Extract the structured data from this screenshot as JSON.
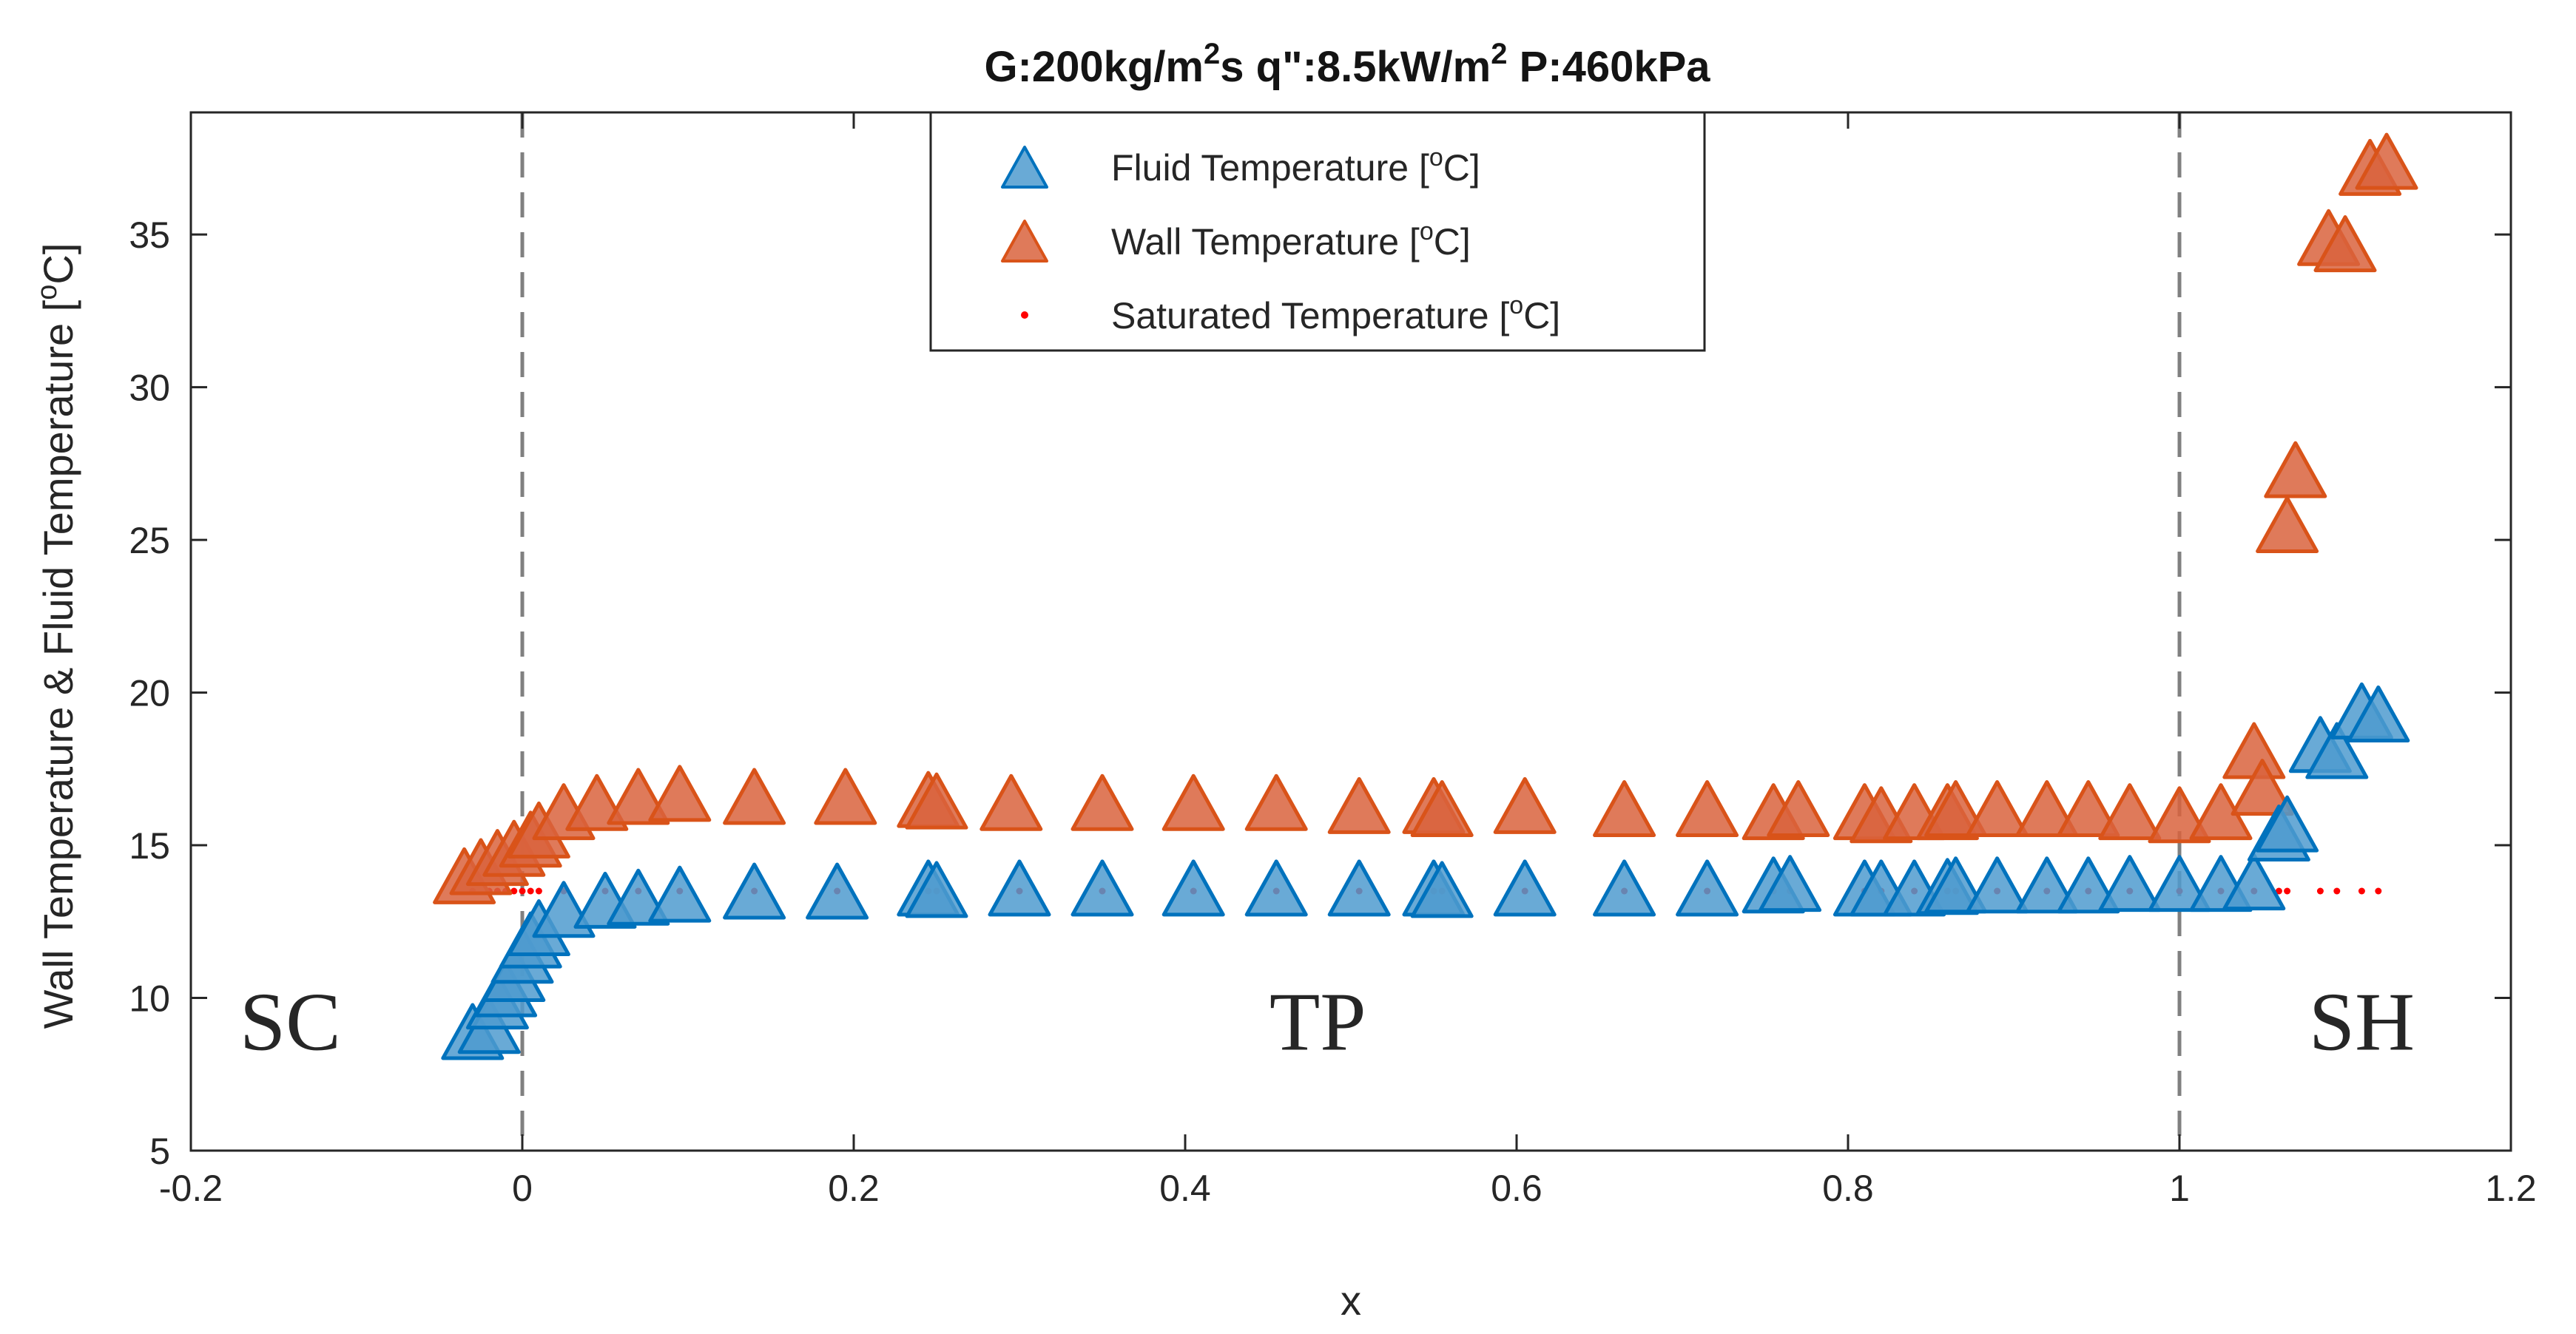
{
  "chart_data": {
    "type": "scatter",
    "title": {
      "prefix": "G:200kg/m",
      "sup1": "2",
      "mid": "s q\":8.5kW/m",
      "sup2": "2",
      "suffix": " P:460kPa"
    },
    "xlabel": "x",
    "ylabel": {
      "main": "Wall Temperature & Fluid Temperature [",
      "sup": "o",
      "end": "C]"
    },
    "xlim": [
      -0.2,
      1.2
    ],
    "ylim": [
      5,
      39
    ],
    "xticks": [
      -0.2,
      0,
      0.2,
      0.4,
      0.6,
      0.8,
      1,
      1.2
    ],
    "xtick_labels": [
      "-0.2",
      "0",
      "0.2",
      "0.4",
      "0.6",
      "0.8",
      "1",
      "1.2"
    ],
    "yticks": [
      5,
      10,
      15,
      20,
      25,
      30,
      35
    ],
    "ytick_labels": [
      "5",
      "10",
      "15",
      "20",
      "25",
      "30",
      "35"
    ],
    "vlines": [
      0,
      1
    ],
    "regions": [
      {
        "label": "SC",
        "x": -0.14,
        "y": 8.3
      },
      {
        "label": "TP",
        "x": 0.48,
        "y": 8.3
      },
      {
        "label": "SH",
        "x": 1.11,
        "y": 8.3
      }
    ],
    "legend": {
      "placement": "top-center",
      "entries": [
        {
          "name": "Fluid Temperature [",
          "sup": "o",
          "end": "C]",
          "series": "fluid"
        },
        {
          "name": "Wall Temperature [",
          "sup": "o",
          "end": "C]",
          "series": "wall"
        },
        {
          "name": "Saturated Temperature [",
          "sup": "o",
          "end": "C]",
          "series": "sat"
        }
      ]
    },
    "series": [
      {
        "name": "Fluid Temperature",
        "key": "fluid",
        "marker": "triangle",
        "color": "#0072BD",
        "fill": "#4f9bcf",
        "points": [
          [
            -0.03,
            8.9
          ],
          [
            -0.02,
            9.1
          ],
          [
            -0.015,
            9.9
          ],
          [
            -0.01,
            10.3
          ],
          [
            -0.005,
            10.8
          ],
          [
            0.0,
            11.4
          ],
          [
            0.005,
            11.9
          ],
          [
            0.01,
            12.3
          ],
          [
            0.025,
            12.9
          ],
          [
            0.05,
            13.2
          ],
          [
            0.07,
            13.3
          ],
          [
            0.095,
            13.4
          ],
          [
            0.14,
            13.5
          ],
          [
            0.19,
            13.5
          ],
          [
            0.245,
            13.6
          ],
          [
            0.25,
            13.55
          ],
          [
            0.3,
            13.6
          ],
          [
            0.35,
            13.6
          ],
          [
            0.405,
            13.6
          ],
          [
            0.455,
            13.6
          ],
          [
            0.505,
            13.6
          ],
          [
            0.55,
            13.6
          ],
          [
            0.555,
            13.55
          ],
          [
            0.605,
            13.6
          ],
          [
            0.665,
            13.6
          ],
          [
            0.715,
            13.6
          ],
          [
            0.755,
            13.7
          ],
          [
            0.765,
            13.75
          ],
          [
            0.81,
            13.6
          ],
          [
            0.82,
            13.6
          ],
          [
            0.84,
            13.6
          ],
          [
            0.86,
            13.65
          ],
          [
            0.865,
            13.7
          ],
          [
            0.89,
            13.7
          ],
          [
            0.92,
            13.7
          ],
          [
            0.945,
            13.7
          ],
          [
            0.97,
            13.75
          ],
          [
            1.0,
            13.75
          ],
          [
            1.025,
            13.75
          ],
          [
            1.045,
            13.8
          ],
          [
            1.06,
            15.4
          ],
          [
            1.065,
            15.7
          ],
          [
            1.085,
            18.3
          ],
          [
            1.095,
            18.1
          ],
          [
            1.11,
            19.4
          ],
          [
            1.12,
            19.3
          ]
        ]
      },
      {
        "name": "Wall Temperature",
        "key": "wall",
        "marker": "triangle",
        "color": "#D95319",
        "fill": "#d9633d",
        "points": [
          [
            -0.035,
            14.0
          ],
          [
            -0.025,
            14.3
          ],
          [
            -0.015,
            14.6
          ],
          [
            -0.005,
            14.9
          ],
          [
            0.005,
            15.2
          ],
          [
            0.01,
            15.5
          ],
          [
            0.025,
            16.1
          ],
          [
            0.045,
            16.4
          ],
          [
            0.07,
            16.6
          ],
          [
            0.095,
            16.7
          ],
          [
            0.14,
            16.6
          ],
          [
            0.195,
            16.6
          ],
          [
            0.245,
            16.5
          ],
          [
            0.25,
            16.45
          ],
          [
            0.295,
            16.4
          ],
          [
            0.35,
            16.4
          ],
          [
            0.405,
            16.4
          ],
          [
            0.455,
            16.4
          ],
          [
            0.505,
            16.3
          ],
          [
            0.55,
            16.3
          ],
          [
            0.555,
            16.2
          ],
          [
            0.605,
            16.3
          ],
          [
            0.665,
            16.2
          ],
          [
            0.715,
            16.2
          ],
          [
            0.755,
            16.1
          ],
          [
            0.77,
            16.2
          ],
          [
            0.81,
            16.1
          ],
          [
            0.82,
            16.0
          ],
          [
            0.84,
            16.1
          ],
          [
            0.86,
            16.1
          ],
          [
            0.865,
            16.2
          ],
          [
            0.89,
            16.2
          ],
          [
            0.92,
            16.2
          ],
          [
            0.945,
            16.2
          ],
          [
            0.97,
            16.1
          ],
          [
            1.0,
            16.0
          ],
          [
            1.025,
            16.1
          ],
          [
            1.045,
            18.1
          ],
          [
            1.05,
            16.9
          ],
          [
            1.07,
            27.3
          ],
          [
            1.065,
            25.5
          ],
          [
            1.09,
            34.9
          ],
          [
            1.1,
            34.7
          ],
          [
            1.115,
            37.2
          ],
          [
            1.125,
            37.4
          ]
        ]
      },
      {
        "name": "Saturated Temperature",
        "key": "sat",
        "marker": "dot",
        "color": "#ff0000",
        "fill": "#ff0000",
        "points": [
          [
            -0.03,
            13.5
          ],
          [
            -0.02,
            13.5
          ],
          [
            -0.015,
            13.5
          ],
          [
            -0.01,
            13.5
          ],
          [
            -0.005,
            13.5
          ],
          [
            0.0,
            13.5
          ],
          [
            0.005,
            13.5
          ],
          [
            0.01,
            13.5
          ],
          [
            0.025,
            13.5
          ],
          [
            0.05,
            13.5
          ],
          [
            0.07,
            13.5
          ],
          [
            0.095,
            13.5
          ],
          [
            0.14,
            13.5
          ],
          [
            0.19,
            13.5
          ],
          [
            0.245,
            13.5
          ],
          [
            0.25,
            13.5
          ],
          [
            0.3,
            13.5
          ],
          [
            0.35,
            13.5
          ],
          [
            0.405,
            13.5
          ],
          [
            0.455,
            13.5
          ],
          [
            0.505,
            13.5
          ],
          [
            0.55,
            13.5
          ],
          [
            0.555,
            13.5
          ],
          [
            0.605,
            13.5
          ],
          [
            0.665,
            13.5
          ],
          [
            0.715,
            13.5
          ],
          [
            0.755,
            13.5
          ],
          [
            0.765,
            13.5
          ],
          [
            0.81,
            13.5
          ],
          [
            0.82,
            13.5
          ],
          [
            0.84,
            13.5
          ],
          [
            0.86,
            13.5
          ],
          [
            0.865,
            13.5
          ],
          [
            0.89,
            13.5
          ],
          [
            0.92,
            13.5
          ],
          [
            0.945,
            13.5
          ],
          [
            0.97,
            13.5
          ],
          [
            1.0,
            13.5
          ],
          [
            1.025,
            13.5
          ],
          [
            1.045,
            13.5
          ],
          [
            1.06,
            13.5
          ],
          [
            1.065,
            13.5
          ],
          [
            1.085,
            13.5
          ],
          [
            1.095,
            13.5
          ],
          [
            1.11,
            13.5
          ],
          [
            1.12,
            13.5
          ]
        ]
      }
    ]
  }
}
